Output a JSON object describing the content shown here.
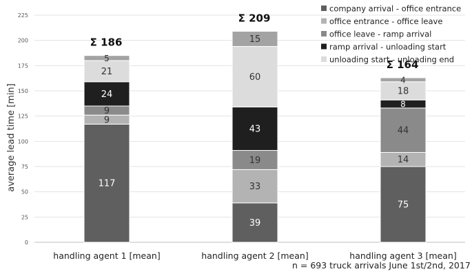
{
  "chart_data": {
    "type": "bar",
    "stacked": true,
    "title": "",
    "xlabel": "",
    "ylabel": "average lead time [min]",
    "ylim": [
      0,
      225
    ],
    "yticks": [
      0,
      25,
      50,
      75,
      100,
      125,
      150,
      175,
      200,
      225
    ],
    "grid": true,
    "legend_position": "top-right",
    "categories": [
      "handling agent 1 [mean]",
      "handling agent 2 [mean]",
      "handling agent 3 [mean]"
    ],
    "totals": [
      "Σ 186",
      "Σ 209",
      "Σ 164"
    ],
    "series": [
      {
        "name": "company arrival - office entrance",
        "color": "#5f5f5f",
        "label_color": "#ffffff",
        "values": [
          117,
          39,
          75
        ]
      },
      {
        "name": "office entrance - office leave",
        "color": "#b3b3b3",
        "label_color": "#333333",
        "values": [
          9,
          33,
          14
        ]
      },
      {
        "name": "office leave - ramp arrival",
        "color": "#8a8a8a",
        "label_color": "#333333",
        "values": [
          9,
          19,
          44
        ]
      },
      {
        "name": "ramp arrival - unloading start",
        "color": "#1f1f1f",
        "label_color": "#ffffff",
        "values": [
          24,
          43,
          8
        ]
      },
      {
        "name": "unloading start - unloading end",
        "color": "#dcdcdc",
        "label_color": "#333333",
        "values": [
          21,
          60,
          18
        ]
      },
      {
        "name": "",
        "color": "#a3a3a3",
        "label_color": "#333333",
        "values": [
          5,
          15,
          4
        ]
      }
    ],
    "annotation": "n = 693 truck arrivals June 1st/2nd, 2017"
  }
}
